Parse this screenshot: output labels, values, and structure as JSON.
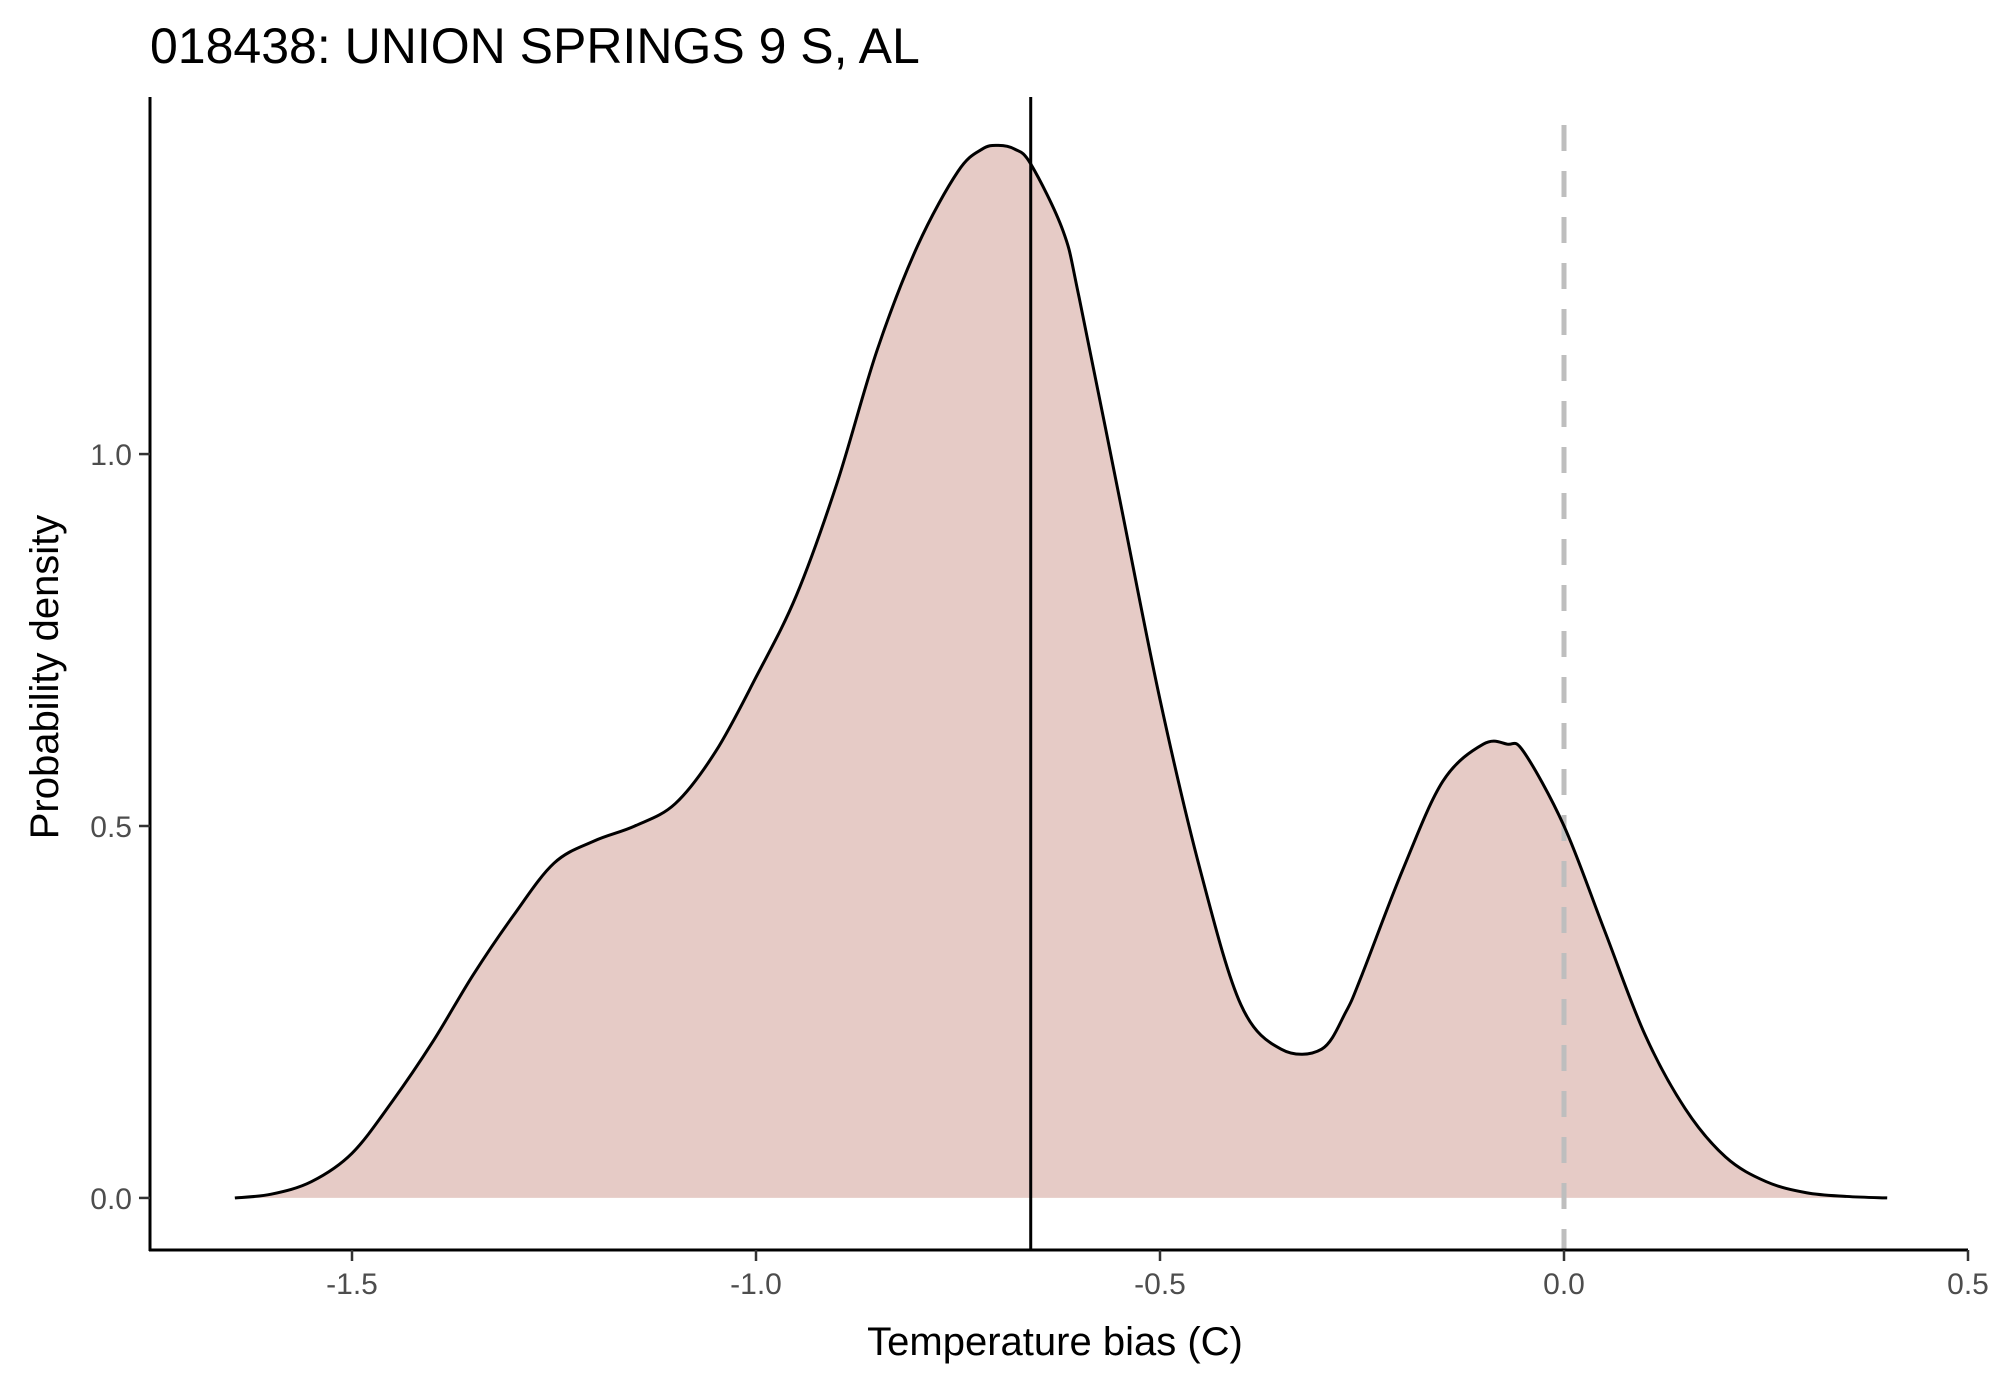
{
  "chart_data": {
    "type": "area",
    "title": "018438: UNION SPRINGS 9 S, AL",
    "xlabel": "Temperature bias (C)",
    "ylabel": "Probability density",
    "xlim": [
      -1.75,
      0.5
    ],
    "ylim": [
      -0.07,
      1.48
    ],
    "x_ticks": [
      -1.5,
      -1.0,
      -0.5,
      0.0,
      0.5
    ],
    "x_tick_labels": [
      "-1.5",
      "-1.0",
      "-0.5",
      "0.0",
      "0.5"
    ],
    "y_ticks": [
      0.0,
      0.5,
      1.0
    ],
    "y_tick_labels": [
      "0.0",
      "0.5",
      "1.0"
    ],
    "grid": false,
    "legend": "none",
    "density": {
      "x": [
        -1.645,
        -1.6,
        -1.55,
        -1.5,
        -1.45,
        -1.4,
        -1.35,
        -1.3,
        -1.25,
        -1.2,
        -1.15,
        -1.1,
        -1.05,
        -1.0,
        -0.95,
        -0.9,
        -0.85,
        -0.8,
        -0.75,
        -0.72,
        -0.7,
        -0.68,
        -0.66,
        -0.62,
        -0.6,
        -0.55,
        -0.5,
        -0.45,
        -0.4,
        -0.35,
        -0.3,
        -0.27,
        -0.25,
        -0.2,
        -0.15,
        -0.1,
        -0.07,
        -0.05,
        0.0,
        0.05,
        0.1,
        0.15,
        0.2,
        0.25,
        0.3,
        0.35,
        0.4
      ],
      "y": [
        0.0,
        0.005,
        0.022,
        0.06,
        0.13,
        0.21,
        0.3,
        0.38,
        0.45,
        0.48,
        0.5,
        0.53,
        0.6,
        0.7,
        0.81,
        0.96,
        1.14,
        1.28,
        1.38,
        1.41,
        1.415,
        1.41,
        1.39,
        1.3,
        1.21,
        0.94,
        0.67,
        0.44,
        0.26,
        0.2,
        0.2,
        0.25,
        0.3,
        0.44,
        0.56,
        0.61,
        0.61,
        0.6,
        0.5,
        0.36,
        0.22,
        0.12,
        0.055,
        0.022,
        0.007,
        0.002,
        0.0
      ],
      "fill_color": "#e6cbc6",
      "line_color": "#000000"
    },
    "reference_lines": [
      {
        "axis": "x",
        "value": -0.66,
        "style": "solid",
        "color": "#000000"
      },
      {
        "axis": "x",
        "value": 0.0,
        "style": "dashed",
        "color": "#bebebe"
      }
    ]
  }
}
